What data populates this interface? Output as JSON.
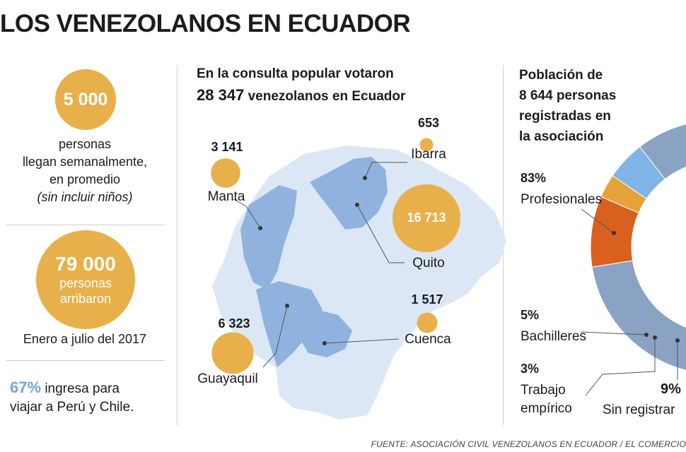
{
  "title": "LOS VENEZOLANOS EN ECUADOR",
  "stats": {
    "weekly": {
      "value": "5 000",
      "line1": "personas",
      "line2": "llegan semanalmente,",
      "line3": "en promedio",
      "line4": "(sin incluir niños)"
    },
    "arrived": {
      "value": "79 000",
      "line1": "personas",
      "line2": "arribaron",
      "caption": "Enero a julio del 2017"
    },
    "transit": {
      "pct": "67%",
      "line1": "ingresa para",
      "line2": "viajar a Perú y Chile."
    }
  },
  "map": {
    "title_line1": "En la consulta popular votaron",
    "title_bold": "28 347",
    "title_line2_rest": "venezolanos en Ecuador"
  },
  "donut": {
    "title_line1": "Población de",
    "title_line2": "8 644 personas",
    "title_line3": "registradas en",
    "title_line4": "la asociación"
  },
  "source": "FUENTE: ASOCIACIÓN CIVIL VENEZOLANOS EN ECUADOR / EL COMERCIO",
  "chart_data": [
    {
      "type": "bubble-map",
      "categories": [
        "Ibarra",
        "Manta",
        "Quito",
        "Cuenca",
        "Guayaquil"
      ],
      "values": [
        653,
        3141,
        16713,
        1517,
        6323
      ],
      "value_labels": [
        "653",
        "3 141",
        "16 713",
        "1 517",
        "6 323"
      ]
    },
    {
      "type": "pie",
      "categories": [
        "Profesionales",
        "Bachilleres",
        "Trabajo empírico",
        "Sin registrar"
      ],
      "values": [
        83,
        5,
        3,
        9
      ],
      "value_labels": [
        "83%",
        "5%",
        "3%",
        "9%"
      ],
      "colors": [
        "#8aa3c4",
        "#7fb4e6",
        "#e6a23a",
        "#d9601e"
      ]
    }
  ]
}
